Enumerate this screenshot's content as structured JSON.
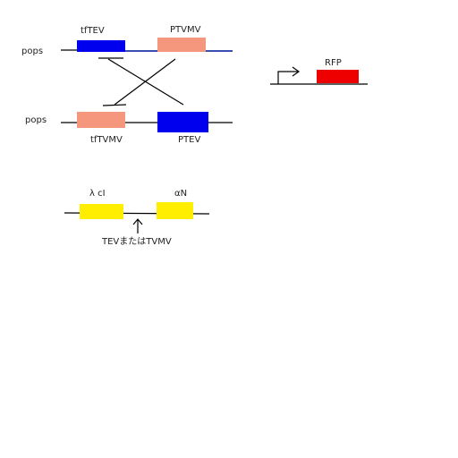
{
  "upper_construct": {
    "promoter_label": "pops",
    "gene_1": "tfTEV",
    "gene_2": "PTVMV"
  },
  "lower_construct": {
    "promoter_label": "pops",
    "gene_1": "tfTVMV",
    "gene_2": "PTEV"
  },
  "reporter": {
    "gene": "RFP"
  },
  "fusion": {
    "part_1": "λ cI",
    "part_2": "αN",
    "cleavage_site": "TEVまたはTVMV"
  }
}
